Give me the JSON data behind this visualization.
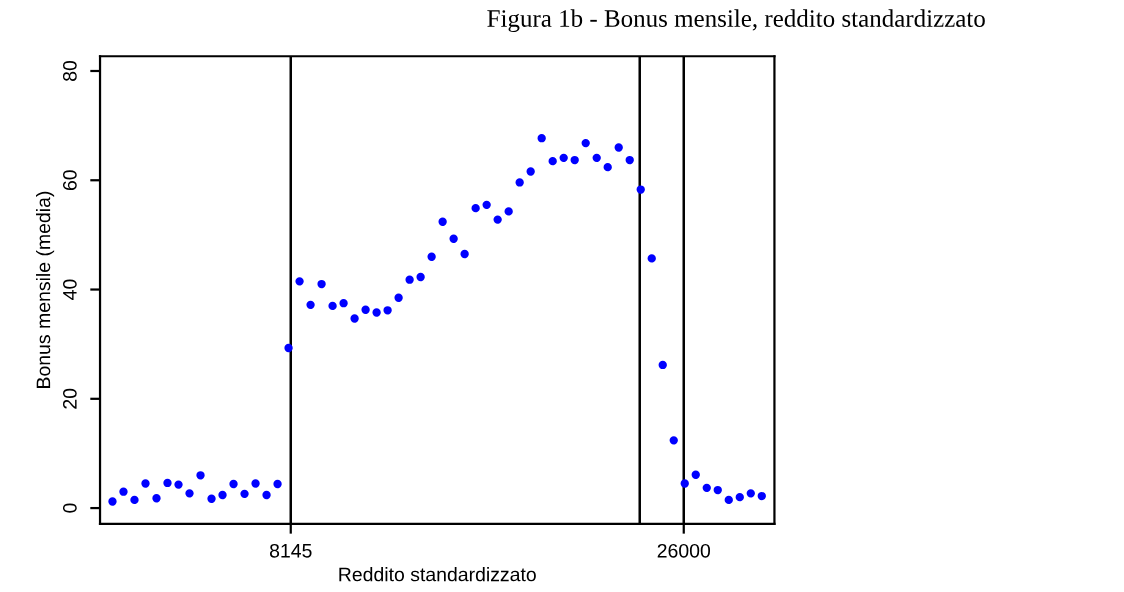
{
  "chart_data": {
    "type": "scatter",
    "title": "Figura 1b - Bonus mensile, reddito standardizzato",
    "xlabel": "Reddito standardizzato",
    "ylabel": "Bonus mensile (media)",
    "x": [
      45,
      545,
      1045,
      1545,
      2045,
      2545,
      3045,
      3545,
      4045,
      4545,
      5045,
      5545,
      6045,
      6545,
      7045,
      7545,
      8045,
      8545,
      9045,
      9545,
      10045,
      10545,
      11045,
      11545,
      12045,
      12545,
      13045,
      13545,
      14045,
      14545,
      15045,
      15545,
      16045,
      16545,
      17045,
      17545,
      18045,
      18545,
      19045,
      19545,
      20045,
      20545,
      21045,
      21545,
      22045,
      22545,
      23045,
      23545,
      24045,
      24545,
      25045,
      25545,
      26045,
      26545,
      27045,
      27545,
      28045,
      28545,
      29045,
      29545
    ],
    "series": [
      {
        "color": "#0000ff",
        "values": [
          1.2,
          3.0,
          1.5,
          4.5,
          1.8,
          4.6,
          4.3,
          2.7,
          6.0,
          1.7,
          2.4,
          4.4,
          2.6,
          4.5,
          2.4,
          4.4,
          29.3,
          41.5,
          37.2,
          41.0,
          37.0,
          37.5,
          34.7,
          36.3,
          35.8,
          36.2,
          38.5,
          41.8,
          42.3,
          46.0,
          52.4,
          49.3,
          46.5,
          54.9,
          55.5,
          52.8,
          54.3,
          59.6,
          61.6,
          67.7,
          63.5,
          64.1,
          63.7,
          66.8,
          64.1,
          62.4,
          66.0,
          63.7,
          58.3,
          45.7,
          26.2,
          12.4,
          4.5,
          6.1,
          3.7,
          3.3,
          1.5,
          2.0,
          2.7,
          2.2
        ]
      }
    ],
    "xlim": [
      -520,
      30120
    ],
    "xticks": [
      8145,
      26000
    ],
    "ylim": [
      -2.9,
      82.7
    ],
    "yticks": [
      0,
      20,
      40,
      60,
      80
    ],
    "ref_lines": [
      {
        "axis": "x",
        "value": 8145,
        "color": "#000000"
      },
      {
        "axis": "x",
        "value": 24000,
        "color": "#000000"
      },
      {
        "axis": "x",
        "value": 26000,
        "color": "#000000"
      }
    ],
    "marker": "circle",
    "grid": false,
    "legend": false
  }
}
